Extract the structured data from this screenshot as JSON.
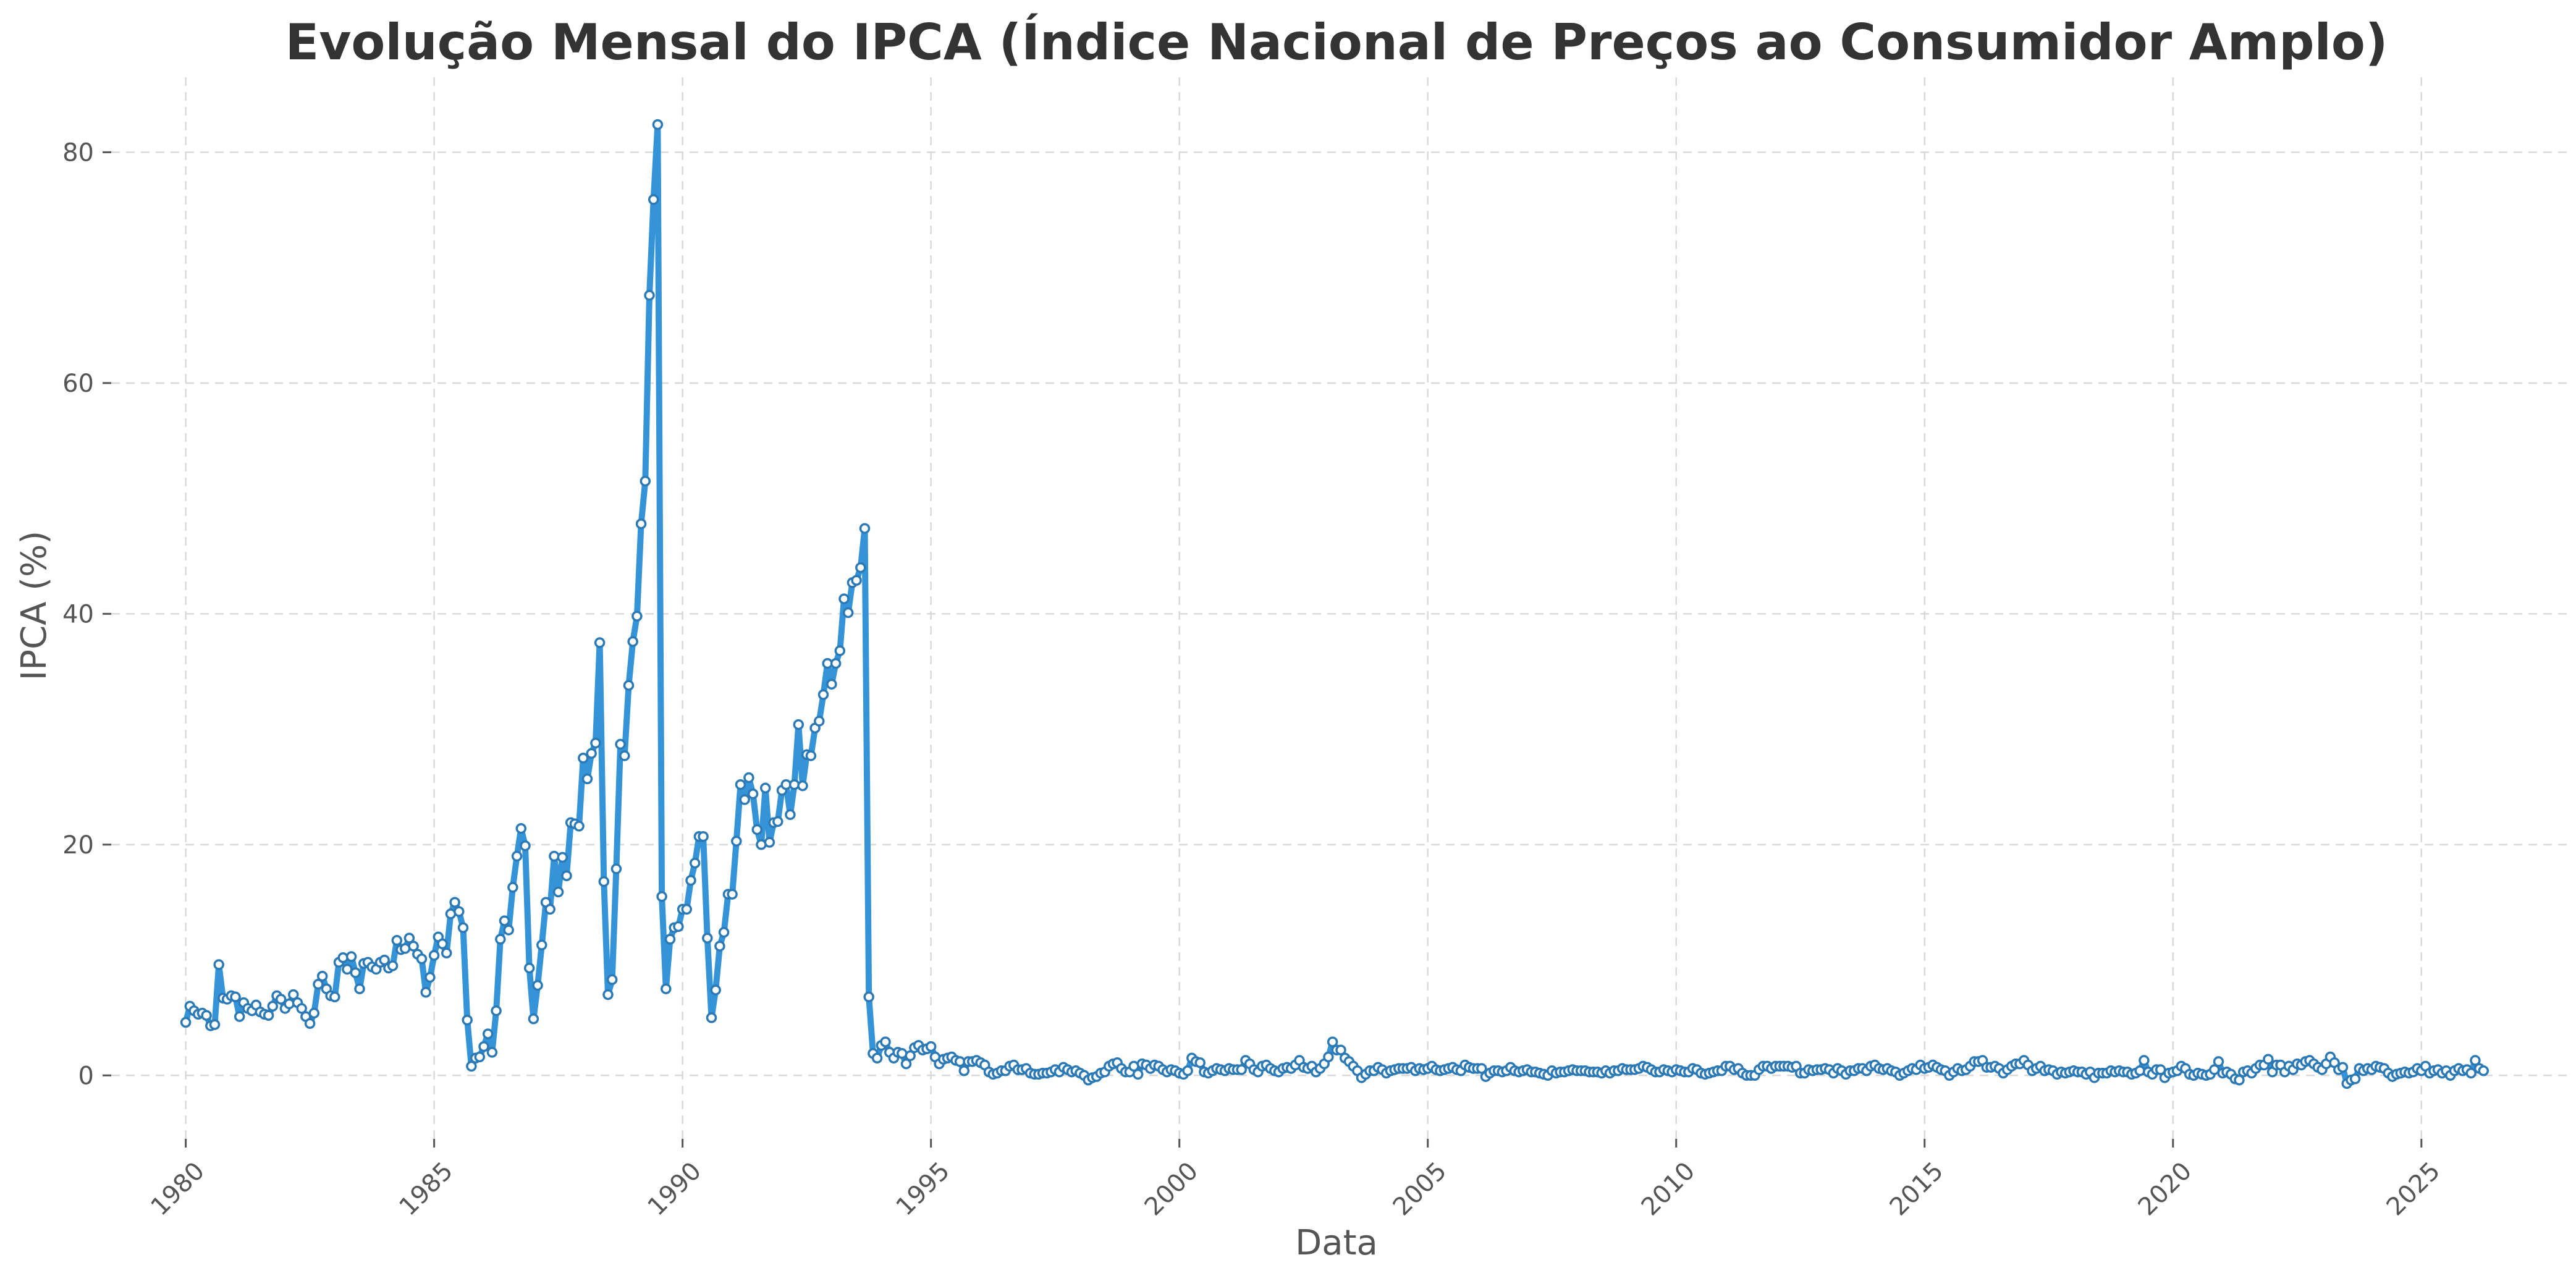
{
  "chart_data": {
    "type": "line",
    "title": "Evolução Mensal do IPCA (Índice Nacional de Preços ao Consumidor Amplo)",
    "xlabel": "Data",
    "ylabel": "IPCA (%)",
    "xlim": [
      1978.5,
      2028.0
    ],
    "ylim": [
      -5.5,
      86.5
    ],
    "x_ticks": [
      1980,
      1985,
      1990,
      1995,
      2000,
      2005,
      2010,
      2015,
      2020,
      2025
    ],
    "x_tick_labels": [
      "1980",
      "1985",
      "1990",
      "1995",
      "2000",
      "2005",
      "2010",
      "2015",
      "2020",
      "2025"
    ],
    "y_ticks": [
      0,
      20,
      40,
      60,
      80
    ],
    "y_tick_labels": [
      "0",
      "20",
      "40",
      "60",
      "80"
    ],
    "grid": true,
    "legend": false,
    "colors": {
      "line": "#3594d8",
      "marker_edge": "#2b79b5",
      "marker_face": "#ffffff"
    },
    "series": [
      {
        "x_start": "1980-01",
        "frequency": "monthly",
        "marker": "circle",
        "values": [
          4.6,
          6.0,
          5.6,
          5.3,
          5.4,
          5.2,
          4.3,
          4.4,
          9.6,
          6.7,
          6.6,
          6.9,
          6.8,
          5.1,
          6.3,
          5.8,
          5.6,
          6.1,
          5.5,
          5.3,
          5.2,
          6.0,
          6.9,
          6.6,
          5.8,
          6.2,
          7.0,
          6.3,
          5.8,
          5.1,
          4.5,
          5.4,
          7.9,
          8.6,
          7.5,
          6.9,
          6.8,
          9.8,
          10.2,
          9.2,
          10.3,
          8.9,
          7.5,
          9.7,
          9.8,
          9.4,
          9.2,
          9.8,
          10.0,
          9.3,
          9.5,
          11.7,
          10.9,
          11.0,
          11.9,
          11.2,
          10.5,
          10.1,
          7.2,
          8.5,
          10.4,
          12.0,
          11.4,
          10.6,
          14.0,
          15.0,
          14.2,
          12.8,
          4.8,
          0.8,
          1.5,
          1.6,
          2.5,
          3.6,
          2.0,
          5.6,
          11.8,
          13.4,
          12.6,
          16.3,
          19.0,
          21.4,
          19.9,
          9.3,
          4.9,
          7.8,
          11.3,
          15.0,
          14.4,
          19.0,
          15.9,
          18.9,
          17.3,
          21.9,
          21.8,
          21.6,
          27.5,
          25.7,
          27.9,
          28.8,
          37.5,
          16.8,
          7.0,
          8.3,
          17.9,
          28.7,
          27.7,
          33.8,
          37.6,
          39.8,
          47.8,
          51.5,
          67.6,
          75.9,
          82.4,
          15.5,
          7.5,
          11.8,
          12.8,
          12.9,
          14.4,
          14.4,
          16.9,
          18.4,
          20.7,
          20.7,
          11.9,
          5.0,
          7.4,
          11.2,
          12.4,
          15.7,
          15.7,
          20.3,
          25.2,
          23.9,
          25.8,
          24.4,
          21.3,
          20.0,
          24.9,
          20.2,
          21.9,
          22.0,
          24.7,
          25.2,
          22.6,
          25.2,
          30.4,
          25.1,
          27.8,
          27.7,
          30.1,
          30.7,
          33.0,
          35.7,
          33.9,
          35.7,
          36.8,
          41.3,
          40.1,
          42.7,
          42.9,
          44.0,
          47.4,
          6.8,
          1.9,
          1.5,
          2.6,
          2.9,
          2.0,
          1.5,
          2.0,
          1.9,
          1.0,
          1.7,
          2.4,
          2.6,
          2.2,
          2.3,
          2.5,
          1.6,
          1.0,
          1.4,
          1.5,
          1.6,
          1.3,
          1.2,
          0.4,
          1.2,
          1.2,
          1.3,
          1.1,
          0.9,
          0.3,
          0.1,
          0.2,
          0.4,
          0.4,
          0.8,
          0.9,
          0.5,
          0.5,
          0.6,
          0.2,
          0.1,
          0.1,
          0.2,
          0.2,
          0.3,
          0.5,
          0.3,
          0.7,
          0.5,
          0.3,
          0.4,
          0.2,
          0.0,
          -0.4,
          -0.2,
          -0.1,
          0.2,
          0.3,
          0.8,
          1.0,
          1.1,
          0.6,
          0.3,
          0.3,
          0.8,
          0.1,
          1.0,
          0.9,
          0.6,
          0.9,
          0.8,
          0.5,
          0.3,
          0.5,
          0.4,
          0.2,
          0.1,
          0.4,
          1.5,
          1.2,
          1.1,
          0.3,
          0.2,
          0.4,
          0.6,
          0.5,
          0.4,
          0.6,
          0.5,
          0.5,
          0.5,
          1.3,
          1.0,
          0.5,
          0.3,
          0.8,
          0.9,
          0.6,
          0.4,
          0.3,
          0.6,
          0.7,
          0.6,
          0.9,
          1.3,
          0.7,
          0.6,
          0.8,
          0.3,
          0.6,
          1.0,
          1.6,
          2.9,
          2.2,
          2.2,
          1.5,
          1.2,
          0.8,
          0.4,
          -0.2,
          0.1,
          0.4,
          0.4,
          0.7,
          0.5,
          0.2,
          0.4,
          0.5,
          0.6,
          0.6,
          0.6,
          0.7,
          0.4,
          0.6,
          0.5,
          0.6,
          0.8,
          0.5,
          0.4,
          0.5,
          0.6,
          0.7,
          0.5,
          0.4,
          0.9,
          0.7,
          0.6,
          0.6,
          0.6,
          -0.1,
          0.2,
          0.4,
          0.4,
          0.3,
          0.4,
          0.7,
          0.4,
          0.3,
          0.4,
          0.5,
          0.3,
          0.3,
          0.2,
          0.1,
          0.0,
          0.4,
          0.2,
          0.3,
          0.3,
          0.4,
          0.5,
          0.4,
          0.4,
          0.4,
          0.3,
          0.3,
          0.3,
          0.2,
          0.4,
          0.2,
          0.4,
          0.4,
          0.6,
          0.5,
          0.5,
          0.5,
          0.6,
          0.8,
          0.7,
          0.5,
          0.3,
          0.3,
          0.5,
          0.4,
          0.3,
          0.5,
          0.4,
          0.3,
          0.3,
          0.6,
          0.5,
          0.2,
          0.1,
          0.2,
          0.3,
          0.4,
          0.4,
          0.8,
          0.8,
          0.5,
          0.6,
          0.2,
          0.0,
          0.0,
          0.0,
          0.5,
          0.8,
          0.8,
          0.6,
          0.8,
          0.8,
          0.8,
          0.8,
          0.7,
          0.8,
          0.2,
          0.2,
          0.5,
          0.4,
          0.5,
          0.5,
          0.6,
          0.5,
          0.2,
          0.6,
          0.4,
          0.1,
          0.4,
          0.4,
          0.6,
          0.6,
          0.4,
          0.8,
          0.9,
          0.6,
          0.5,
          0.6,
          0.4,
          0.3,
          0.0,
          0.2,
          0.4,
          0.6,
          0.5,
          0.9,
          0.6,
          0.7,
          0.9,
          0.7,
          0.5,
          0.4,
          0.0,
          0.3,
          0.6,
          0.4,
          0.5,
          0.8,
          1.2,
          1.2,
          1.3,
          0.7,
          0.7,
          0.8,
          0.6,
          0.2,
          0.5,
          0.8,
          1.0,
          1.0,
          1.3,
          0.9,
          0.4,
          0.6,
          0.8,
          0.4,
          0.5,
          0.4,
          0.1,
          0.3,
          0.2,
          0.3,
          0.4,
          0.3,
          0.3,
          0.1,
          0.3,
          -0.2,
          0.2,
          0.2,
          0.2,
          0.4,
          0.3,
          0.4,
          0.3,
          0.3,
          0.1,
          0.2,
          0.4,
          1.3,
          0.3,
          0.1,
          0.5,
          0.5,
          -0.2,
          0.2,
          0.3,
          0.4,
          0.8,
          0.6,
          0.1,
          0.0,
          0.2,
          0.1,
          -0.0,
          0.1,
          0.5,
          1.2,
          0.2,
          0.3,
          0.1,
          -0.3,
          -0.4,
          0.3,
          0.4,
          0.2,
          0.6,
          0.9,
          0.9,
          1.4,
          0.3,
          0.9,
          0.9,
          0.3,
          0.8,
          0.5,
          1.0,
          0.9,
          1.2,
          1.3,
          1.0,
          0.7,
          0.5,
          1.0,
          1.6,
          1.1,
          0.5,
          0.7,
          -0.7,
          -0.4,
          -0.3,
          0.6,
          0.4,
          0.6,
          0.5,
          0.8,
          0.7,
          0.6,
          0.2,
          -0.1,
          0.1,
          0.2,
          0.3,
          0.2,
          0.3,
          0.6,
          0.4,
          0.8,
          0.2,
          0.4,
          0.5,
          0.2,
          0.4,
          -0.0,
          0.4,
          0.6,
          0.4,
          0.5,
          0.2,
          1.3,
          0.6,
          0.4
        ]
      }
    ]
  }
}
